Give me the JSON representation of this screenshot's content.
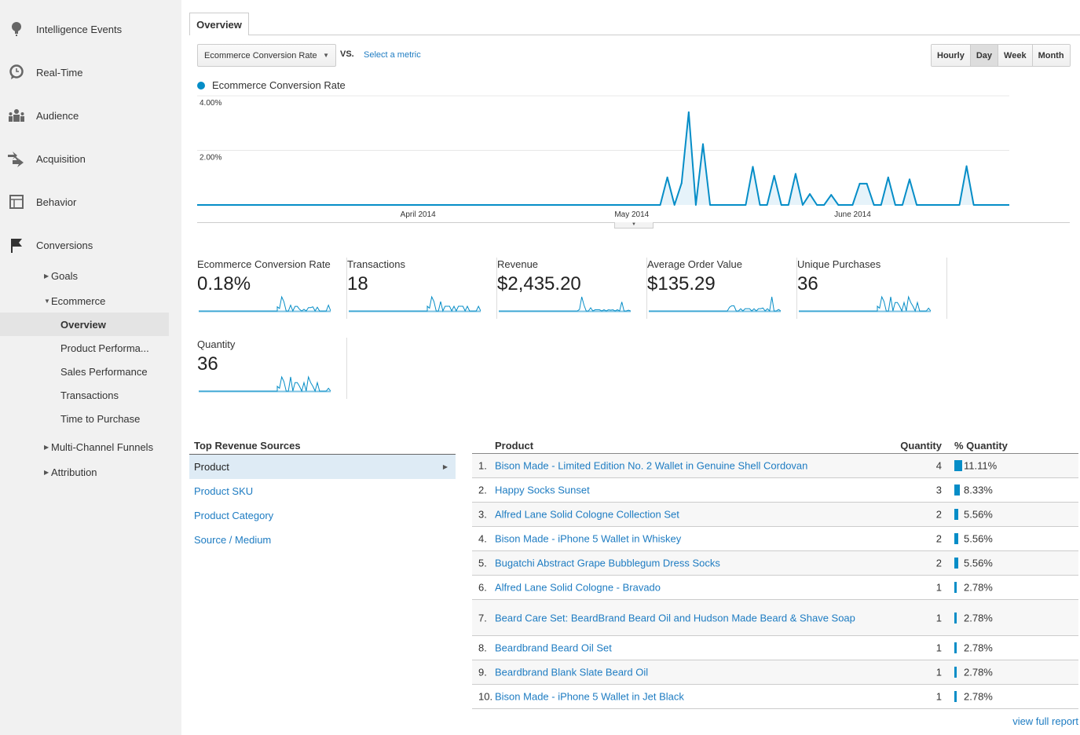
{
  "sidebar": {
    "main": [
      {
        "label": "Intelligence Events",
        "icon": "lightbulb-icon"
      },
      {
        "label": "Real-Time",
        "icon": "clock-icon"
      },
      {
        "label": "Audience",
        "icon": "people-icon"
      },
      {
        "label": "Acquisition",
        "icon": "arrows-icon"
      },
      {
        "label": "Behavior",
        "icon": "layout-icon"
      },
      {
        "label": "Conversions",
        "icon": "flag-icon"
      }
    ],
    "sub": {
      "goals": "Goals",
      "ecommerce": "Ecommerce",
      "overview": "Overview",
      "product_performance": "Product Performa...",
      "sales_performance": "Sales Performance",
      "transactions": "Transactions",
      "time_to_purchase": "Time to Purchase",
      "multi_channel": "Multi-Channel Funnels",
      "attribution": "Attribution"
    }
  },
  "tab": "Overview",
  "controls": {
    "metric": "Ecommerce Conversion Rate",
    "vs": "VS.",
    "select_metric": "Select a metric",
    "granularity": [
      "Hourly",
      "Day",
      "Week",
      "Month"
    ],
    "granularity_selected": "Day"
  },
  "chart_data": {
    "type": "area",
    "title": "",
    "legend": "Ecommerce Conversion Rate",
    "color": "#058dc7",
    "x_range": [
      "2014-03-01",
      "2014-06-23"
    ],
    "x_ticks": [
      {
        "date": "2014-04-01",
        "label": "April 2014"
      },
      {
        "date": "2014-05-01",
        "label": "May 2014"
      },
      {
        "date": "2014-06-01",
        "label": "June 2014"
      }
    ],
    "y_ticks": [
      {
        "value": 2,
        "label": "2.00%"
      },
      {
        "value": 4,
        "label": "4.00%"
      }
    ],
    "ylim": [
      0,
      4
    ],
    "grid": true,
    "default_value": 0,
    "points": [
      {
        "date": "2014-05-06",
        "value": 1.01
      },
      {
        "date": "2014-05-08",
        "value": 0.8
      },
      {
        "date": "2014-05-09",
        "value": 3.4
      },
      {
        "date": "2014-05-11",
        "value": 2.23
      },
      {
        "date": "2014-05-18",
        "value": 1.4
      },
      {
        "date": "2014-05-21",
        "value": 1.07
      },
      {
        "date": "2014-05-24",
        "value": 1.14
      },
      {
        "date": "2014-05-26",
        "value": 0.4
      },
      {
        "date": "2014-05-29",
        "value": 0.37
      },
      {
        "date": "2014-06-02",
        "value": 0.78
      },
      {
        "date": "2014-06-03",
        "value": 0.78
      },
      {
        "date": "2014-06-06",
        "value": 1.01
      },
      {
        "date": "2014-06-09",
        "value": 0.94
      },
      {
        "date": "2014-06-17",
        "value": 1.42
      }
    ]
  },
  "metrics": [
    {
      "label": "Ecommerce Conversion Rate",
      "value": "0.18%",
      "spark": [
        1,
        0.6,
        3.4,
        2.2,
        0,
        0,
        1.4,
        0,
        1.1,
        1.1,
        0.4,
        0,
        0.4,
        0,
        0.8,
        0.8,
        1,
        0,
        0.9,
        0,
        0,
        0,
        0,
        1.4,
        0
      ]
    },
    {
      "label": "Transactions",
      "value": "18",
      "spark": [
        1,
        0.6,
        3,
        2,
        0,
        0,
        2,
        0,
        1,
        1,
        1,
        0,
        1,
        0,
        1,
        1,
        1,
        0,
        1,
        0,
        0,
        0,
        0,
        1,
        0
      ]
    },
    {
      "label": "Revenue",
      "value": "$2,435.20",
      "spark": [
        0,
        0.4,
        3.6,
        1.5,
        0,
        0,
        0.8,
        0,
        0.3,
        0.3,
        0.3,
        0,
        0.3,
        0,
        0.3,
        0.2,
        0.3,
        0,
        0.3,
        0,
        2.3,
        0,
        0,
        0.2,
        0
      ]
    },
    {
      "label": "Average Order Value",
      "value": "$135.29",
      "spark": [
        0,
        1,
        1.4,
        1.4,
        0,
        0,
        0.6,
        0,
        0.6,
        0.6,
        0.6,
        0,
        0.6,
        0,
        0.6,
        0.6,
        0.8,
        0,
        0.6,
        0,
        3.8,
        0,
        0,
        0.4,
        0
      ]
    },
    {
      "label": "Unique Purchases",
      "value": "36",
      "spark": [
        1,
        0.6,
        3,
        2,
        0,
        0,
        3,
        0,
        1.8,
        1.8,
        1,
        0,
        1.8,
        0,
        3,
        1.8,
        1,
        0,
        1.8,
        0,
        0,
        0,
        0,
        0.6,
        0
      ]
    },
    {
      "label": "Quantity",
      "value": "36",
      "spark": [
        1,
        0.6,
        3,
        2,
        0,
        0,
        3,
        0,
        1.8,
        1.8,
        1,
        0,
        1.8,
        0,
        3,
        1.8,
        1,
        0,
        1.8,
        0,
        0,
        0,
        0,
        0.6,
        0
      ]
    }
  ],
  "top_revenue_sources": {
    "title": "Top Revenue Sources",
    "items": [
      "Product",
      "Product SKU",
      "Product Category",
      "Source / Medium"
    ],
    "selected": "Product"
  },
  "product_table": {
    "headers": {
      "product": "Product",
      "quantity": "Quantity",
      "pct": "% Quantity"
    },
    "rows": [
      {
        "rank": "1.",
        "name": "Bison Made - Limited Edition No. 2 Wallet in Genuine Shell Cordovan",
        "quantity": "4",
        "pct": "11.11%",
        "pct_value": 11.11
      },
      {
        "rank": "2.",
        "name": "Happy Socks Sunset",
        "quantity": "3",
        "pct": "8.33%",
        "pct_value": 8.33
      },
      {
        "rank": "3.",
        "name": "Alfred Lane Solid Cologne Collection Set",
        "quantity": "2",
        "pct": "5.56%",
        "pct_value": 5.56
      },
      {
        "rank": "4.",
        "name": "Bison Made - iPhone 5 Wallet in Whiskey",
        "quantity": "2",
        "pct": "5.56%",
        "pct_value": 5.56
      },
      {
        "rank": "5.",
        "name": "Bugatchi Abstract Grape Bubblegum Dress Socks",
        "quantity": "2",
        "pct": "5.56%",
        "pct_value": 5.56
      },
      {
        "rank": "6.",
        "name": "Alfred Lane Solid Cologne - Bravado",
        "quantity": "1",
        "pct": "2.78%",
        "pct_value": 2.78
      },
      {
        "rank": "7.",
        "name": "Beard Care Set: BeardBrand Beard Oil and Hudson Made Beard & Shave Soap",
        "quantity": "1",
        "pct": "2.78%",
        "pct_value": 2.78
      },
      {
        "rank": "8.",
        "name": "Beardbrand Beard Oil Set",
        "quantity": "1",
        "pct": "2.78%",
        "pct_value": 2.78
      },
      {
        "rank": "9.",
        "name": "Beardbrand Blank Slate Beard Oil",
        "quantity": "1",
        "pct": "2.78%",
        "pct_value": 2.78
      },
      {
        "rank": "10.",
        "name": "Bison Made - iPhone 5 Wallet in Jet Black",
        "quantity": "1",
        "pct": "2.78%",
        "pct_value": 2.78
      }
    ],
    "view_full_report": "view full report"
  }
}
